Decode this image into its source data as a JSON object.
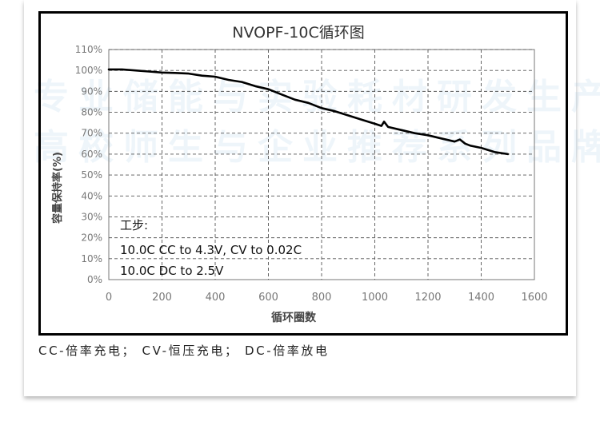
{
  "watermark": {
    "line1": "专业储能与实验耗材研发生产",
    "line2": "高校师生与企业推荐系列品牌"
  },
  "caption": "CC-倍率充电； CV-恒压充电； DC-倍率放电",
  "colors": {
    "line": "#000000",
    "grid": "#555555",
    "tick_text": "#777777",
    "watermark": "#9cc6e4"
  },
  "chart_data": {
    "type": "line",
    "title": "NVOPF-10C循环图",
    "xlabel": "循环圈数",
    "ylabel": "容量保持率(%)",
    "xlim": [
      0,
      1600
    ],
    "ylim": [
      0,
      110
    ],
    "x_ticks": [
      0,
      200,
      400,
      600,
      800,
      1000,
      1200,
      1400,
      1600
    ],
    "y_ticks": [
      0,
      10,
      20,
      30,
      40,
      50,
      60,
      70,
      80,
      90,
      100,
      110
    ],
    "y_tick_labels": [
      "0%",
      "10%",
      "20%",
      "30%",
      "40%",
      "50%",
      "60%",
      "70%",
      "80%",
      "90%",
      "100%",
      "110%"
    ],
    "grid": true,
    "legend": "none",
    "annotation": {
      "lines": [
        "工步:",
        "10.0C CC to 4.3V, CV to 0.02C",
        "10.0C DC to 2.5V"
      ],
      "position": "bottom-left"
    },
    "series": [
      {
        "x": [
          0,
          50,
          100,
          150,
          200,
          250,
          300,
          350,
          400,
          450,
          500,
          550,
          600,
          650,
          700,
          750,
          800,
          850,
          900,
          950,
          1000,
          1025,
          1035,
          1050,
          1100,
          1150,
          1200,
          1250,
          1300,
          1320,
          1340,
          1360,
          1400,
          1450,
          1500
        ],
        "y": [
          100.5,
          100.5,
          100,
          99.5,
          99,
          98.8,
          98.5,
          97.5,
          97,
          95.5,
          94.5,
          92.5,
          91,
          88.5,
          86,
          84.5,
          82,
          80.5,
          78.5,
          76.5,
          74.5,
          73.5,
          75.5,
          73,
          71.5,
          70,
          69,
          67.5,
          66,
          67,
          65,
          64,
          63,
          61,
          60
        ]
      }
    ]
  }
}
